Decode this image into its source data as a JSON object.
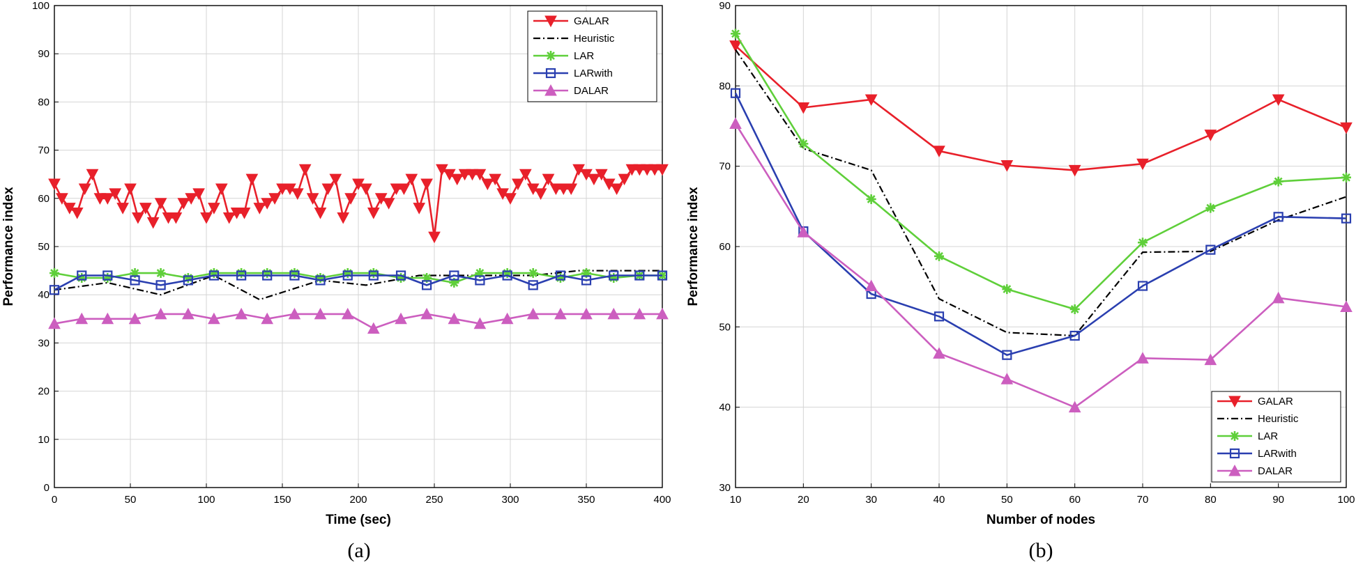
{
  "colors": {
    "GALAR": "#e8202a",
    "Heuristic": "#000000",
    "LAR": "#5fcf3a",
    "LARwith": "#2a3fb0",
    "DALAR": "#cc5ebf",
    "grid": "#d4d4d4"
  },
  "chart_data": [
    {
      "id": "a",
      "type": "line",
      "caption": "(a)",
      "title": "",
      "xlabel": "Time (sec)",
      "ylabel": "Performance index",
      "xlim": [
        0,
        400
      ],
      "ylim": [
        0,
        100
      ],
      "xticks": [
        0,
        50,
        100,
        150,
        200,
        250,
        300,
        350,
        400
      ],
      "yticks": [
        0,
        10,
        20,
        30,
        40,
        50,
        60,
        70,
        80,
        90,
        100
      ],
      "grid": true,
      "legend": "top-right",
      "series": [
        {
          "name": "GALAR",
          "marker": "triangle-down",
          "style": "solid",
          "x": [
            0,
            5,
            10,
            15,
            20,
            25,
            30,
            35,
            40,
            45,
            50,
            55,
            60,
            65,
            70,
            75,
            80,
            85,
            90,
            95,
            100,
            105,
            110,
            115,
            120,
            125,
            130,
            135,
            140,
            145,
            150,
            155,
            160,
            165,
            170,
            175,
            180,
            185,
            190,
            195,
            200,
            205,
            210,
            215,
            220,
            225,
            230,
            235,
            240,
            245,
            250,
            255,
            260,
            265,
            270,
            275,
            280,
            285,
            290,
            295,
            300,
            305,
            310,
            315,
            320,
            325,
            330,
            335,
            340,
            345,
            350,
            355,
            360,
            365,
            370,
            375,
            380,
            385,
            390,
            395,
            400
          ],
          "y": [
            63,
            60,
            58,
            57,
            62,
            65,
            60,
            60,
            61,
            58,
            62,
            56,
            58,
            55,
            59,
            56,
            56,
            59,
            60,
            61,
            56,
            58,
            62,
            56,
            57,
            57,
            64,
            58,
            59,
            60,
            62,
            62,
            61,
            66,
            60,
            57,
            62,
            64,
            56,
            60,
            63,
            62,
            57,
            60,
            59,
            62,
            62,
            64,
            58,
            63,
            52,
            66,
            65,
            64,
            65,
            65,
            65,
            63,
            64,
            61,
            60,
            63,
            65,
            62,
            61,
            64,
            62,
            62,
            62,
            66,
            65,
            64,
            65,
            63,
            62,
            64,
            66,
            66,
            66,
            66,
            66
          ]
        },
        {
          "name": "Heuristic",
          "marker": "none",
          "style": "dashdot",
          "x": [
            0,
            35,
            70,
            105,
            135,
            175,
            205,
            240,
            280,
            315,
            345,
            375,
            400
          ],
          "y": [
            41,
            42.5,
            40,
            44,
            39,
            43,
            42,
            44,
            44,
            44,
            45,
            45,
            45
          ]
        },
        {
          "name": "LAR",
          "marker": "star",
          "style": "solid",
          "x": [
            0,
            18,
            35,
            53,
            70,
            88,
            105,
            123,
            140,
            158,
            175,
            193,
            210,
            228,
            245,
            263,
            280,
            298,
            315,
            333,
            350,
            368,
            385,
            400
          ],
          "y": [
            44.5,
            43.5,
            43.5,
            44.5,
            44.5,
            43.5,
            44.5,
            44.5,
            44.5,
            44.5,
            43.5,
            44.5,
            44.5,
            43.5,
            43.5,
            42.5,
            44.5,
            44.5,
            44.5,
            43.5,
            44.5,
            43.5,
            44,
            44
          ]
        },
        {
          "name": "LARwith",
          "marker": "square",
          "style": "solid",
          "x": [
            0,
            18,
            35,
            53,
            70,
            88,
            105,
            123,
            140,
            158,
            175,
            193,
            210,
            228,
            245,
            263,
            280,
            298,
            315,
            333,
            350,
            368,
            385,
            400
          ],
          "y": [
            41,
            44,
            44,
            43,
            42,
            43,
            44,
            44,
            44,
            44,
            43,
            44,
            44,
            44,
            42,
            44,
            43,
            44,
            42,
            44,
            43,
            44,
            44,
            44
          ]
        },
        {
          "name": "DALAR",
          "marker": "triangle-up",
          "style": "solid",
          "x": [
            0,
            18,
            35,
            53,
            70,
            88,
            105,
            123,
            140,
            158,
            175,
            193,
            210,
            228,
            245,
            263,
            280,
            298,
            315,
            333,
            350,
            368,
            385,
            400
          ],
          "y": [
            34,
            35,
            35,
            35,
            36,
            36,
            35,
            36,
            35,
            36,
            36,
            36,
            33,
            35,
            36,
            35,
            34,
            35,
            36,
            36,
            36,
            36,
            36,
            36
          ]
        }
      ]
    },
    {
      "id": "b",
      "type": "line",
      "caption": "(b)",
      "title": "",
      "xlabel": "Number of nodes",
      "ylabel": "Performance index",
      "xlim": [
        10,
        100
      ],
      "ylim": [
        30,
        90
      ],
      "xticks": [
        10,
        20,
        30,
        40,
        50,
        60,
        70,
        80,
        90,
        100
      ],
      "yticks": [
        30,
        40,
        50,
        60,
        70,
        80,
        90
      ],
      "grid": true,
      "legend": "bottom-right",
      "series": [
        {
          "name": "GALAR",
          "marker": "triangle-down",
          "style": "solid",
          "x": [
            10,
            20,
            30,
            40,
            50,
            60,
            70,
            80,
            90,
            100
          ],
          "y": [
            85,
            77.3,
            78.3,
            71.9,
            70.1,
            69.5,
            70.3,
            73.9,
            78.3,
            74.8
          ]
        },
        {
          "name": "Heuristic",
          "marker": "none",
          "style": "dashdot",
          "x": [
            10,
            20,
            30,
            40,
            50,
            60,
            70,
            80,
            90,
            100
          ],
          "y": [
            84.5,
            72.2,
            69.5,
            53.5,
            49.3,
            48.9,
            59.3,
            59.4,
            63.3,
            66.2
          ]
        },
        {
          "name": "LAR",
          "marker": "star",
          "style": "solid",
          "x": [
            10,
            20,
            30,
            40,
            50,
            60,
            70,
            80,
            90,
            100
          ],
          "y": [
            86.5,
            72.8,
            65.9,
            58.8,
            54.7,
            52.2,
            60.5,
            64.8,
            68.1,
            68.6
          ]
        },
        {
          "name": "LARwith",
          "marker": "square",
          "style": "solid",
          "x": [
            10,
            20,
            30,
            40,
            50,
            60,
            70,
            80,
            90,
            100
          ],
          "y": [
            79.1,
            61.9,
            54.1,
            51.3,
            46.5,
            48.9,
            55.1,
            59.6,
            63.7,
            63.5
          ]
        },
        {
          "name": "DALAR",
          "marker": "triangle-up",
          "style": "solid",
          "x": [
            10,
            20,
            30,
            40,
            50,
            60,
            70,
            80,
            90,
            100
          ],
          "y": [
            75.3,
            61.8,
            55.1,
            46.7,
            43.5,
            40,
            46.1,
            45.9,
            53.6,
            52.5
          ]
        }
      ]
    }
  ]
}
